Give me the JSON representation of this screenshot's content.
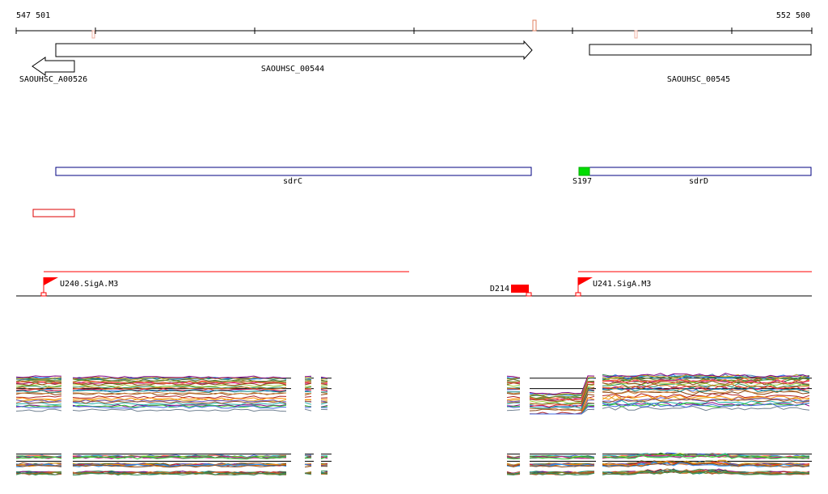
{
  "ruler": {
    "start_label": "547 501",
    "end_label": "552 500",
    "start": 547501,
    "end": 552500
  },
  "genes": [
    {
      "id": "SAOUHSC_A00526",
      "label": "SAOUHSC_A00526",
      "start": 547501,
      "end": 547870,
      "strand": "-"
    },
    {
      "id": "SAOUHSC_00544",
      "label": "SAOUHSC_00544",
      "start": 547870,
      "end": 550870,
      "strand": "+"
    },
    {
      "id": "SAOUHSC_00545",
      "label": "SAOUHSC_00545",
      "start": 551100,
      "end": 552500,
      "strand": "+"
    }
  ],
  "annotations": [
    {
      "id": "sdrC",
      "label": "sdrC",
      "start": 547870,
      "end": 550870
    },
    {
      "id": "sdrD",
      "label": "sdrD",
      "start": 551100,
      "end": 552500
    },
    {
      "id": "S197",
      "label": "S197",
      "start": 551040,
      "end": 551100,
      "color": "#00dd00"
    }
  ],
  "features": [
    {
      "id": "U240.SigA.M3",
      "label": "U240.SigA.M3",
      "start": 547670,
      "end": 549970
    },
    {
      "id": "D214",
      "label": "D214",
      "start": 550570,
      "end": 550670
    },
    {
      "id": "U241.SigA.M3",
      "label": "U241.SigA.M3",
      "start": 551030,
      "end": 552500
    }
  ],
  "colors": {
    "gene_outline": "#000000",
    "annotation_outline": "#000080",
    "feature_red": "#ff0000",
    "s197_green": "#00dd00"
  }
}
